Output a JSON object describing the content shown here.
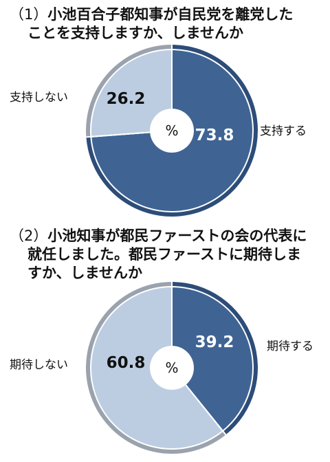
{
  "chart_data": [
    {
      "type": "pie",
      "question_number": "（1）",
      "title_lines": [
        "小池百合子都知事が自民党を離党した",
        "ことを支持しますか、しませんか"
      ],
      "center_label": "%",
      "slices": [
        {
          "label": "支持する",
          "value": 73.8,
          "value_text": "73.8",
          "color": "#3f6494"
        },
        {
          "label": "支持しない",
          "value": 26.2,
          "value_text": "26.2",
          "color": "#bccde2"
        }
      ]
    },
    {
      "type": "pie",
      "question_number": "（2）",
      "title_lines": [
        "小池知事が都民ファーストの会の代表に",
        "就任しました。都民ファーストに期待しま",
        "すか、しませんか"
      ],
      "center_label": "%",
      "slices": [
        {
          "label": "期待する",
          "value": 39.2,
          "value_text": "39.2",
          "color": "#3f6494"
        },
        {
          "label": "期待しない",
          "value": 60.8,
          "value_text": "60.8",
          "color": "#bccde2"
        }
      ]
    }
  ]
}
